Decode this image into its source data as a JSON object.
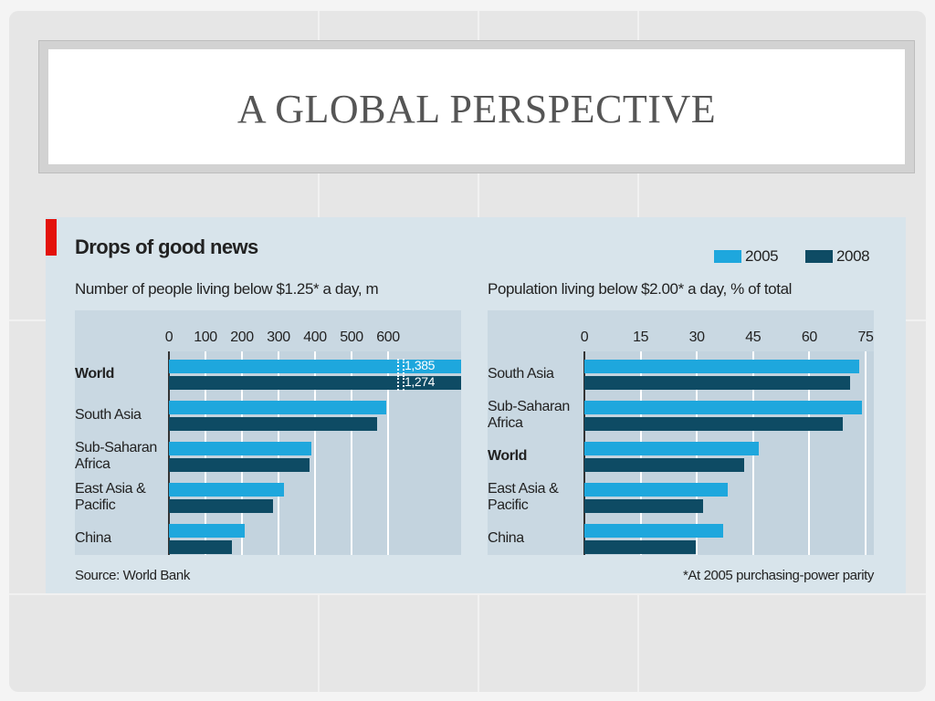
{
  "slide": {
    "title": "A GLOBAL PERSPECTIVE"
  },
  "chart_data": [
    {
      "type": "bar",
      "title": "Drops of good news",
      "subtitle": "Number of people living below $1.25* a day, m",
      "categories": [
        "World",
        "South Asia",
        "Sub-Saharan Africa",
        "East Asia & Pacific",
        "China"
      ],
      "series": [
        {
          "name": "2005",
          "color": "#1ea7dd",
          "values": [
            1385,
            596,
            391,
            316,
            208
          ],
          "value_labels": [
            "1,385",
            null,
            null,
            null,
            null
          ]
        },
        {
          "name": "2008",
          "color": "#0e4b64",
          "values": [
            1274,
            571,
            386,
            284,
            173
          ],
          "value_labels": [
            "1,274",
            null,
            null,
            null,
            null
          ]
        }
      ],
      "xlim": [
        0,
        800
      ],
      "xticks": [
        0,
        100,
        200,
        300,
        400,
        500,
        600
      ],
      "grid": true,
      "highlight": "World",
      "source": "Source: World Bank"
    },
    {
      "type": "bar",
      "subtitle": "Population living below $2.00* a day, % of total",
      "categories": [
        "South Asia",
        "Sub-Saharan Africa",
        "World",
        "East Asia & Pacific",
        "China"
      ],
      "series": [
        {
          "color": "#1ea7dd",
          "values": [
            73.4,
            74,
            46.5,
            38.2,
            37
          ]
        },
        {
          "color": "#0e4b64",
          "values": [
            70.9,
            68.9,
            42.6,
            31.7,
            29.8
          ]
        }
      ],
      "xlim": [
        0,
        77.2
      ],
      "xticks": [
        0,
        15,
        30,
        45,
        60,
        75
      ],
      "grid": true,
      "highlight": "World",
      "note": "*At 2005 purchasing-power parity"
    }
  ]
}
